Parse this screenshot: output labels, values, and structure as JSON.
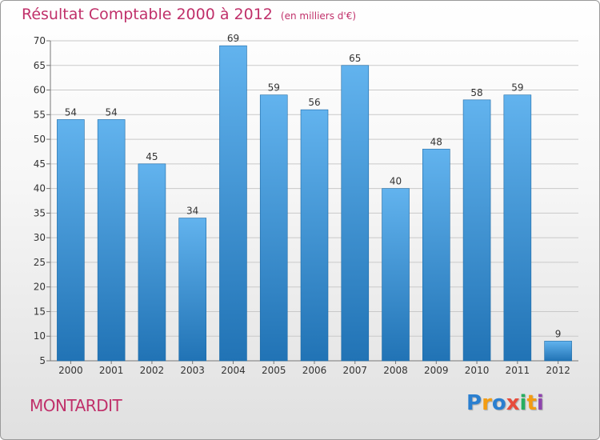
{
  "chart_data": {
    "type": "bar",
    "title": "Résultat Comptable 2000 à 2012",
    "unit": "(en milliers d'€)",
    "categories": [
      "2000",
      "2001",
      "2002",
      "2003",
      "2004",
      "2005",
      "2006",
      "2007",
      "2008",
      "2009",
      "2010",
      "2011",
      "2012"
    ],
    "values": [
      54,
      54,
      45,
      34,
      69,
      59,
      56,
      65,
      40,
      48,
      58,
      59,
      9
    ],
    "ylim": [
      5,
      70
    ],
    "yticks": [
      5,
      10,
      15,
      20,
      25,
      30,
      35,
      40,
      45,
      50,
      55,
      60,
      65,
      70
    ],
    "grid": true,
    "xlabel": "",
    "ylabel": ""
  },
  "place_name": "MONTARDIT",
  "logo": {
    "letters": [
      "P",
      "r",
      "o",
      "x",
      "i",
      "t",
      "i"
    ],
    "colors": [
      "#2a7fd0",
      "#f39c12",
      "#2a7fd0",
      "#e74c3c",
      "#27ae60",
      "#f39c12",
      "#8e44ad"
    ]
  },
  "colors": {
    "title": "#c0306a",
    "bar_top": "#62b3ee",
    "bar_bottom": "#2173b5",
    "grid": "#c9c9c9"
  }
}
